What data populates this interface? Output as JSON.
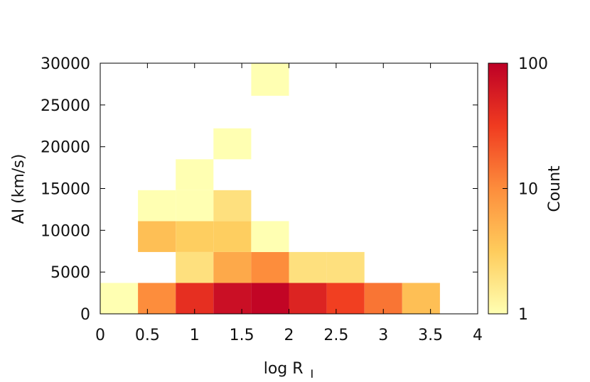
{
  "chart_data": {
    "type": "heatmap",
    "title": "",
    "xlabel": "log R",
    "xlabel_subscript": "I",
    "ylabel": "AI (km/s)",
    "xlim": [
      0,
      4
    ],
    "ylim": [
      0,
      30000
    ],
    "x_ticks": [
      "0",
      "0.5",
      "1",
      "1.5",
      "2",
      "2.5",
      "3",
      "3.5",
      "4"
    ],
    "y_ticks": [
      "0",
      "5000",
      "10000",
      "15000",
      "20000",
      "25000",
      "30000"
    ],
    "x_tick_values": [
      0,
      0.5,
      1,
      1.5,
      2,
      2.5,
      3,
      3.5,
      4
    ],
    "y_tick_values": [
      0,
      5000,
      10000,
      15000,
      20000,
      25000,
      30000
    ],
    "colorbar": {
      "label": "Count",
      "scale": "log",
      "range": [
        1,
        100
      ],
      "ticks": [
        "1",
        "10",
        "100"
      ],
      "tick_values": [
        1,
        10,
        100
      ],
      "colors": [
        "#ffffb2",
        "#fecc5c",
        "#fd8d3c",
        "#f03b20",
        "#bd0026"
      ]
    },
    "x_bin_width": 0.4,
    "cells": [
      {
        "x0": 0.0,
        "y0": 0,
        "y1": 3700,
        "count": 1
      },
      {
        "x0": 0.4,
        "y0": 0,
        "y1": 3700,
        "count": 10
      },
      {
        "x0": 0.8,
        "y0": 0,
        "y1": 3700,
        "count": 40
      },
      {
        "x0": 1.2,
        "y0": 0,
        "y1": 3700,
        "count": 75
      },
      {
        "x0": 1.6,
        "y0": 0,
        "y1": 3700,
        "count": 90
      },
      {
        "x0": 2.0,
        "y0": 0,
        "y1": 3700,
        "count": 50
      },
      {
        "x0": 2.4,
        "y0": 0,
        "y1": 3700,
        "count": 30
      },
      {
        "x0": 2.8,
        "y0": 0,
        "y1": 3700,
        "count": 14
      },
      {
        "x0": 3.2,
        "y0": 0,
        "y1": 3700,
        "count": 4
      },
      {
        "x0": 0.8,
        "y0": 3700,
        "y1": 7400,
        "count": 2
      },
      {
        "x0": 1.2,
        "y0": 3700,
        "y1": 7400,
        "count": 6
      },
      {
        "x0": 1.6,
        "y0": 3700,
        "y1": 7400,
        "count": 10
      },
      {
        "x0": 2.0,
        "y0": 3700,
        "y1": 7400,
        "count": 2
      },
      {
        "x0": 2.4,
        "y0": 3700,
        "y1": 7400,
        "count": 2
      },
      {
        "x0": 0.4,
        "y0": 7400,
        "y1": 11100,
        "count": 4
      },
      {
        "x0": 0.8,
        "y0": 7400,
        "y1": 11100,
        "count": 3
      },
      {
        "x0": 1.2,
        "y0": 7400,
        "y1": 11100,
        "count": 3
      },
      {
        "x0": 1.6,
        "y0": 7400,
        "y1": 11100,
        "count": 1
      },
      {
        "x0": 0.4,
        "y0": 11100,
        "y1": 14800,
        "count": 1
      },
      {
        "x0": 0.8,
        "y0": 11100,
        "y1": 14800,
        "count": 1
      },
      {
        "x0": 1.2,
        "y0": 11100,
        "y1": 14800,
        "count": 2
      },
      {
        "x0": 0.8,
        "y0": 14800,
        "y1": 18500,
        "count": 1
      },
      {
        "x0": 1.2,
        "y0": 18500,
        "y1": 22200,
        "count": 1
      },
      {
        "x0": 1.6,
        "y0": 26100,
        "y1": 30000,
        "count": 1
      }
    ]
  }
}
